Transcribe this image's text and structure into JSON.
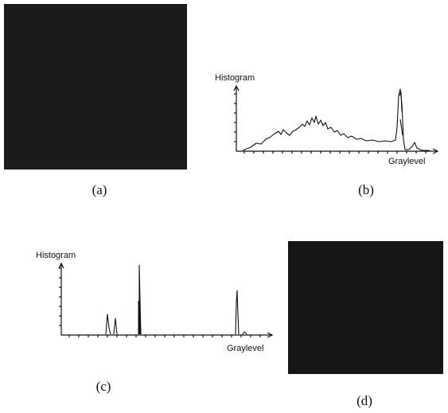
{
  "panels": [
    {
      "label": "(a)"
    },
    {
      "label": "(b)",
      "y_axis_label": "Histogram",
      "x_axis_label": "Graylevel"
    },
    {
      "label": "(c)",
      "y_axis_label": "Histogram",
      "x_axis_label": "Graylevel"
    },
    {
      "label": "(d)"
    }
  ]
}
